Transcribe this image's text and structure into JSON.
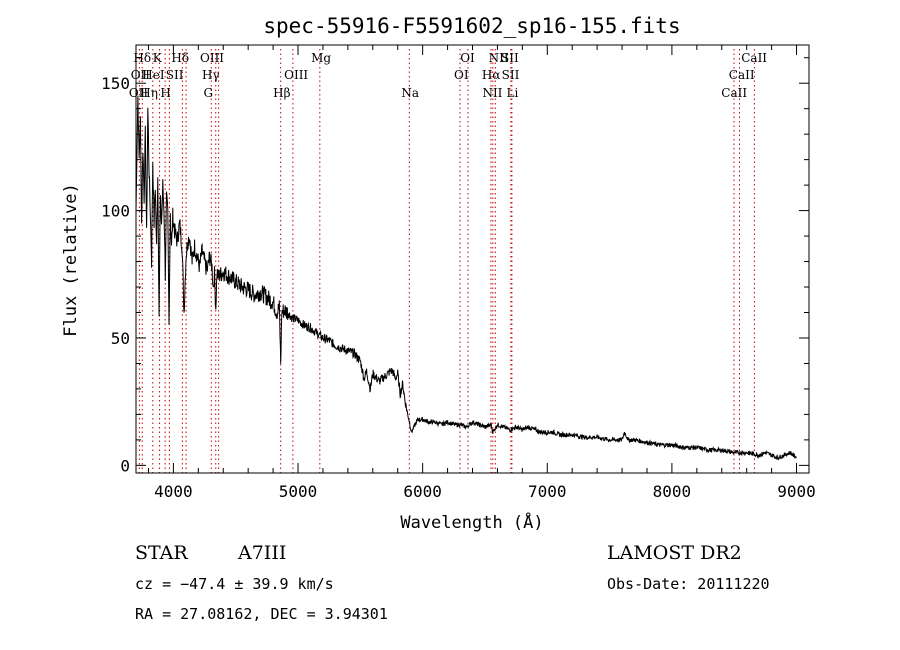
{
  "chart_data": {
    "type": "line",
    "title": "spec-55916-F5591602_sp16-155.fits",
    "xlabel": "Wavelength (Å)",
    "ylabel": "Flux (relative)",
    "xlim": [
      3700,
      9100
    ],
    "ylim": [
      -3,
      165
    ],
    "xticks": [
      4000,
      5000,
      6000,
      7000,
      8000,
      9000
    ],
    "xtick_labels": [
      "4000",
      "5000",
      "6000",
      "7000",
      "8000",
      "9000"
    ],
    "yticks": [
      0,
      50,
      100,
      150
    ],
    "ytick_labels": [
      "0",
      "50",
      "100",
      "150"
    ],
    "grid": false,
    "legend": "none",
    "colors": {
      "spectrum": "#000000",
      "line_markers": "#cc0000",
      "axes": "#000000"
    },
    "series": [
      {
        "x": [
          3700,
          3715,
          3725,
          3735,
          3745,
          3755,
          3765,
          3775,
          3785,
          3795,
          3805,
          3815,
          3825,
          3835,
          3845,
          3855,
          3865,
          3875,
          3885,
          3895,
          3905,
          3915,
          3925,
          3935,
          3945,
          3955,
          3965,
          3975,
          3985,
          3995,
          4010,
          4030,
          4050,
          4070,
          4085,
          4101,
          4115,
          4130,
          4150,
          4170,
          4190,
          4210,
          4230,
          4250,
          4270,
          4290,
          4310,
          4320,
          4330,
          4340,
          4350,
          4360,
          4380,
          4400,
          4450,
          4500,
          4550,
          4600,
          4650,
          4700,
          4750,
          4800,
          4830,
          4850,
          4861,
          4870,
          4890,
          4920,
          4950,
          5000,
          5050,
          5100,
          5150,
          5200,
          5250,
          5300,
          5350,
          5400,
          5450,
          5500,
          5530,
          5550,
          5580,
          5600,
          5650,
          5700,
          5740,
          5760,
          5780,
          5800,
          5820,
          5840,
          5860,
          5880,
          5895,
          5910,
          5930,
          5960,
          6000,
          6050,
          6100,
          6150,
          6200,
          6250,
          6300,
          6350,
          6400,
          6450,
          6500,
          6550,
          6563,
          6600,
          6650,
          6700,
          6750,
          6800,
          6850,
          6900,
          6950,
          7000,
          7050,
          7100,
          7200,
          7300,
          7400,
          7500,
          7600,
          7620,
          7650,
          7700,
          7800,
          7900,
          8000,
          8100,
          8200,
          8300,
          8400,
          8500,
          8600,
          8700,
          8750,
          8800,
          8850,
          8900,
          8950,
          9000
        ],
        "y": [
          100,
          145,
          120,
          135,
          95,
          125,
          105,
          130,
          90,
          140,
          115,
          100,
          80,
          120,
          95,
          110,
          85,
          115,
          60,
          105,
          95,
          110,
          100,
          75,
          105,
          98,
          55,
          100,
          85,
          98,
          92,
          88,
          95,
          86,
          60,
          82,
          88,
          90,
          80,
          86,
          82,
          78,
          84,
          80,
          76,
          82,
          78,
          70,
          75,
          62,
          76,
          74,
          75,
          76,
          74,
          72,
          70,
          69,
          67,
          68,
          66,
          64,
          60,
          62,
          40,
          60,
          61,
          60,
          58,
          57,
          55,
          54,
          52,
          50,
          49,
          47,
          46,
          45,
          44,
          41,
          34,
          37,
          30,
          36,
          33,
          35,
          37,
          37,
          34,
          36,
          28,
          32,
          25,
          20,
          17,
          13,
          15,
          18,
          18,
          17,
          17,
          16,
          17,
          16,
          16,
          15,
          17,
          16,
          15,
          16,
          13,
          16,
          15,
          14,
          15,
          14,
          15,
          14,
          13,
          13,
          13,
          12,
          12,
          11,
          11,
          10,
          10,
          13,
          10,
          10,
          9,
          8,
          8,
          7,
          7,
          6,
          6,
          5,
          5,
          4,
          5,
          4,
          3,
          4,
          5,
          3
        ]
      }
    ],
    "line_markers": [
      {
        "label": "Hδ",
        "x": 3750,
        "row": 1,
        "lx": 3750
      },
      {
        "label": "OII",
        "x": 3727,
        "row": 2,
        "lx": 3735
      },
      {
        "label": "OII",
        "x": 3727,
        "row": 3,
        "lx": 3720
      },
      {
        "label": "Hη",
        "x": 3835,
        "row": 3,
        "lx": 3805
      },
      {
        "label": "HeI",
        "x": 3889,
        "row": 2,
        "lx": 3840
      },
      {
        "label": "K",
        "x": 3934,
        "row": 1,
        "lx": 3870
      },
      {
        "label": "SII",
        "x": 4072,
        "row": 2,
        "lx": 4010
      },
      {
        "label": "H",
        "x": 3968,
        "row": 3,
        "lx": 3938
      },
      {
        "label": "Hδ",
        "x": 4102,
        "row": 1,
        "lx": 4055
      },
      {
        "label": "OIII",
        "x": 4363,
        "row": 1,
        "lx": 4310
      },
      {
        "label": "Hγ",
        "x": 4340,
        "row": 2,
        "lx": 4300
      },
      {
        "label": "G",
        "x": 4304,
        "row": 3,
        "lx": 4280
      },
      {
        "label": "OIII",
        "x": 4959,
        "row": 2,
        "lx": 4985
      },
      {
        "label": "Hβ",
        "x": 4861,
        "row": 3,
        "lx": 4870
      },
      {
        "label": "Mg",
        "x": 5175,
        "row": 1,
        "lx": 5185
      },
      {
        "label": "Na",
        "x": 5893,
        "row": 3,
        "lx": 5900
      },
      {
        "label": "OI",
        "x": 6300,
        "row": 2,
        "lx": 6310
      },
      {
        "label": "OI",
        "x": 6364,
        "row": 1,
        "lx": 6360
      },
      {
        "label": "NII",
        "x": 6583,
        "row": 1,
        "lx": 6610
      },
      {
        "label": "SII",
        "x": 6716,
        "row": 1,
        "lx": 6700
      },
      {
        "label": "Hα",
        "x": 6563,
        "row": 2,
        "lx": 6550
      },
      {
        "label": "SII",
        "x": 6716,
        "row": 2,
        "lx": 6705
      },
      {
        "label": "NII",
        "x": 6548,
        "row": 3,
        "lx": 6560
      },
      {
        "label": "Li",
        "x": 6708,
        "row": 3,
        "lx": 6720
      },
      {
        "label": "CaII",
        "x": 8662,
        "row": 1,
        "lx": 8660
      },
      {
        "label": "CaII",
        "x": 8542,
        "row": 2,
        "lx": 8560
      },
      {
        "label": "CaII",
        "x": 8498,
        "row": 3,
        "lx": 8500
      }
    ]
  },
  "info": {
    "object_class": "STAR",
    "subclass": "A7III",
    "survey": "LAMOST DR2",
    "cz": "cz = −47.4 ± 39.9 km/s",
    "obs_date": "Obs-Date: 20111220",
    "coords": "RA =  27.08162, DEC =   3.94301"
  }
}
